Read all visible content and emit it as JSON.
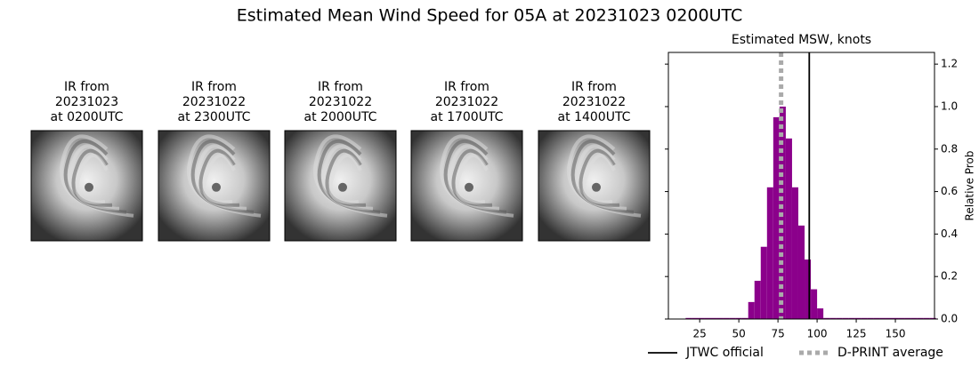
{
  "title": "Estimated Mean Wind Speed for 05A at 20231023 0200UTC",
  "panels": [
    {
      "lines": [
        "IR from",
        "20231023",
        "at 0200UTC"
      ]
    },
    {
      "lines": [
        "IR from",
        "20231022",
        "at 2300UTC"
      ]
    },
    {
      "lines": [
        "IR from",
        "20231022",
        "at 2000UTC"
      ]
    },
    {
      "lines": [
        "IR from",
        "20231022",
        "at 1700UTC"
      ]
    },
    {
      "lines": [
        "IR from",
        "20231022",
        "at 1400UTC"
      ]
    }
  ],
  "chart_data": {
    "type": "histogram",
    "title": "Estimated MSW, knots",
    "ylabel": "Relative Prob",
    "color": "#8b008b",
    "bins": [
      16,
      20,
      24,
      28,
      32,
      36,
      40,
      44,
      48,
      52,
      56,
      60,
      64,
      68,
      72,
      76,
      80,
      84,
      88,
      92,
      96,
      100,
      104,
      108,
      112,
      116,
      120,
      124,
      128,
      132,
      136,
      140,
      144,
      148,
      152,
      156,
      160,
      164,
      168,
      172,
      176
    ],
    "values": [
      0.005,
      0.005,
      0.005,
      0.005,
      0.005,
      0.005,
      0.005,
      0.005,
      0.005,
      0.005,
      0.08,
      0.18,
      0.34,
      0.62,
      0.95,
      1.0,
      0.85,
      0.62,
      0.44,
      0.28,
      0.14,
      0.05,
      0.005,
      0.005,
      0.005,
      0.005,
      0.005,
      0.005,
      0.005,
      0.005,
      0.005,
      0.005,
      0.005,
      0.005,
      0.005,
      0.005,
      0.005,
      0.005,
      0.005,
      0.005
    ],
    "xlim": [
      5,
      175
    ],
    "ylim": [
      0,
      1.255
    ],
    "xticks": [
      25,
      50,
      75,
      100,
      125,
      150
    ],
    "yticks": [
      {
        "value": 0,
        "label": "0.0"
      },
      {
        "value": 0.2,
        "label": "0.2"
      },
      {
        "value": 0.4,
        "label": "0.4"
      },
      {
        "value": 0.6,
        "label": "0.6"
      },
      {
        "value": 0.8,
        "label": "0.8"
      },
      {
        "value": 1.0,
        "label": "1.0"
      },
      {
        "value": 1.2,
        "label": "1.2"
      }
    ],
    "reference_lines": [
      {
        "name": "JTWC official",
        "value": 95,
        "color": "#000000",
        "style": "solid"
      },
      {
        "name": "D-PRINT average",
        "value": 77,
        "color": "#aaaaaa",
        "style": "dotted"
      }
    ]
  }
}
